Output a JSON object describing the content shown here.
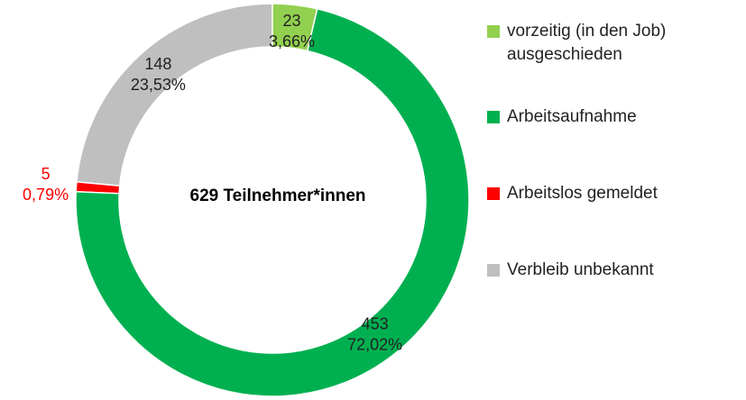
{
  "chart_data": {
    "type": "donut",
    "center_label": "629 Teilnehmer*innen",
    "categories": [
      "vorzeitig (in den Job) ausgeschieden",
      "Arbeitsaufnahme",
      "Arbeitslos gemeldet",
      "Verbleib unbekannt"
    ],
    "values": [
      23,
      453,
      5,
      148
    ],
    "percentages": [
      3.66,
      72.02,
      0.79,
      23.53
    ],
    "percent_labels": [
      "3,66%",
      "72,02%",
      "0,79%",
      "23,53%"
    ],
    "colors": [
      "#92d050",
      "#00b050",
      "#ff0000",
      "#bfbfbf"
    ],
    "legend": "right"
  }
}
